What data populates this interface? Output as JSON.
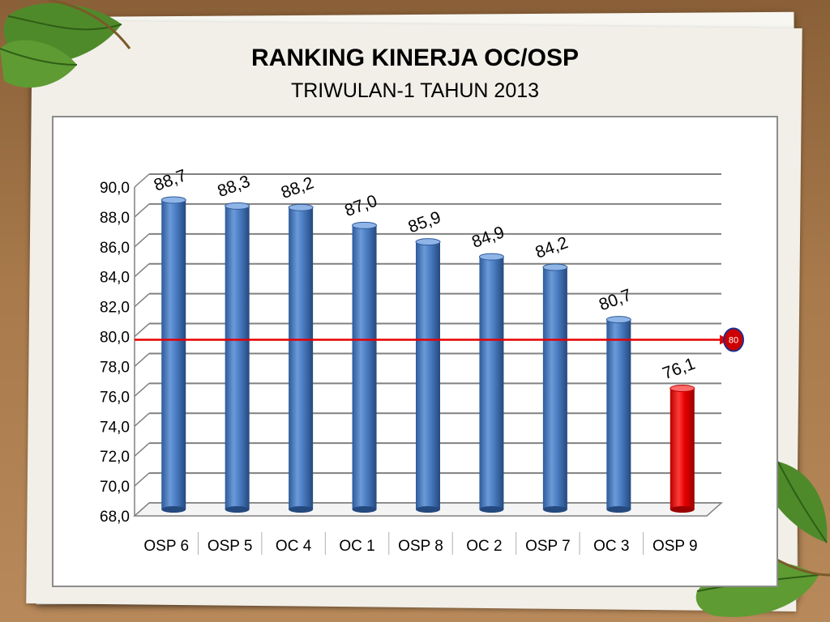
{
  "slide": {
    "title": "RANKING KINERJA OC/OSP",
    "subtitle": "TRIWULAN-1 TAHUN 2013"
  },
  "colors": {
    "bar_default": "#4a7cc2",
    "bar_highlight": "#e60000",
    "target_line": "#e60000"
  },
  "chart_data": {
    "type": "bar",
    "categories": [
      "OSP 6",
      "OSP 5",
      "OC 4",
      "OC 1",
      "OSP 8",
      "OC 2",
      "OSP 7",
      "OC 3",
      "OSP 9"
    ],
    "values": [
      88.7,
      88.3,
      88.2,
      87.0,
      85.9,
      84.9,
      84.2,
      80.7,
      76.1
    ],
    "data_labels": [
      "88,7",
      "88,3",
      "88,2",
      "87,0",
      "85,9",
      "84,9",
      "84,2",
      "80,7",
      "76,1"
    ],
    "highlight_index": 8,
    "ylim": [
      68,
      90
    ],
    "yticks": [
      "68,0",
      "70,0",
      "72,0",
      "74,0",
      "76,0",
      "78,0",
      "80,0",
      "82,0",
      "84,0",
      "86,0",
      "88,0",
      "90,0"
    ],
    "reference_line": {
      "value": 80,
      "label": "80"
    },
    "grid": true,
    "legend": "none"
  }
}
